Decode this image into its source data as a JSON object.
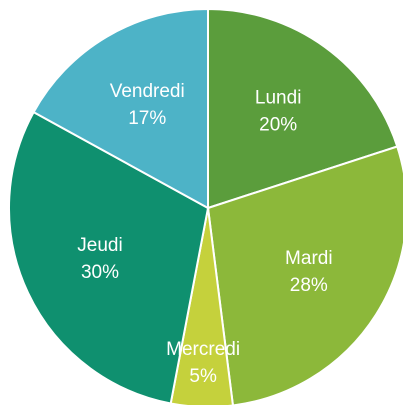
{
  "chart_data": {
    "type": "pie",
    "categories": [
      "Lundi",
      "Mardi",
      "Mercredi",
      "Jeudi",
      "Vendredi"
    ],
    "values": [
      20,
      28,
      5,
      30,
      17
    ],
    "value_labels": [
      "20%",
      "28%",
      "5%",
      "30%",
      "17%"
    ],
    "colors": [
      "#5b9d3c",
      "#8cb83a",
      "#c5d13c",
      "#0f906f",
      "#4db3c7"
    ]
  }
}
